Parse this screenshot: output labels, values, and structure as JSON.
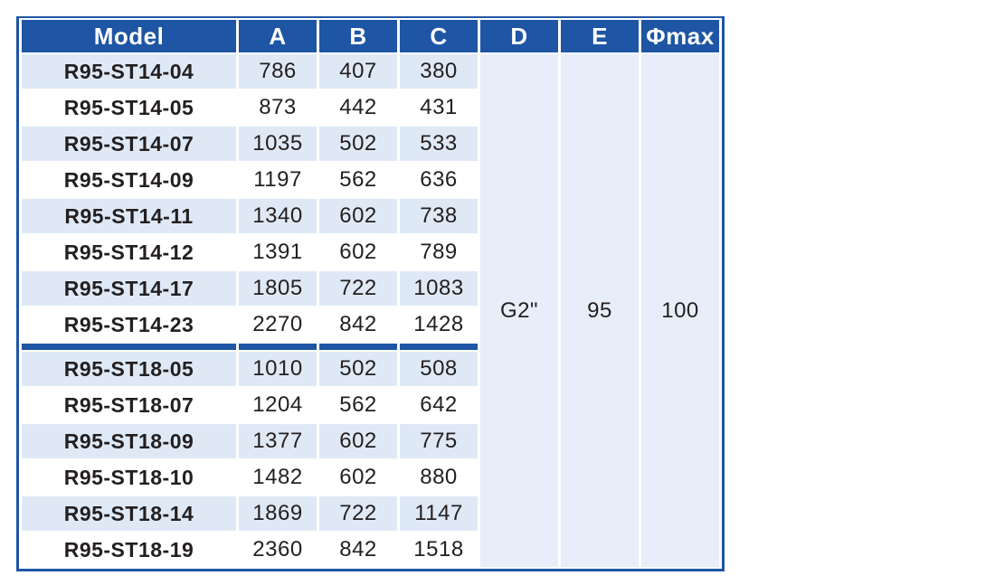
{
  "colors": {
    "header_bg": "#1e55a4",
    "border_blue": "#1e55a4",
    "row_alt": "#dfe9f6",
    "row_plain": "#ffffff",
    "merged_bg": "#e7eef9",
    "cell_text": "#231f20",
    "header_text": "#ffffff"
  },
  "chart_data": {
    "type": "table",
    "columns": [
      "Model",
      "A",
      "B",
      "C",
      "D",
      "E",
      "Φmax"
    ],
    "groups": [
      {
        "rows": [
          {
            "model": "R95-ST14-04",
            "A": 786,
            "B": 407,
            "C": 380
          },
          {
            "model": "R95-ST14-05",
            "A": 873,
            "B": 442,
            "C": 431
          },
          {
            "model": "R95-ST14-07",
            "A": 1035,
            "B": 502,
            "C": 533
          },
          {
            "model": "R95-ST14-09",
            "A": 1197,
            "B": 562,
            "C": 636
          },
          {
            "model": "R95-ST14-11",
            "A": 1340,
            "B": 602,
            "C": 738
          },
          {
            "model": "R95-ST14-12",
            "A": 1391,
            "B": 602,
            "C": 789
          },
          {
            "model": "R95-ST14-17",
            "A": 1805,
            "B": 722,
            "C": 1083
          },
          {
            "model": "R95-ST14-23",
            "A": 2270,
            "B": 842,
            "C": 1428
          }
        ]
      },
      {
        "rows": [
          {
            "model": "R95-ST18-05",
            "A": 1010,
            "B": 502,
            "C": 508
          },
          {
            "model": "R95-ST18-07",
            "A": 1204,
            "B": 562,
            "C": 642
          },
          {
            "model": "R95-ST18-09",
            "A": 1377,
            "B": 602,
            "C": 775
          },
          {
            "model": "R95-ST18-10",
            "A": 1482,
            "B": 602,
            "C": 880
          },
          {
            "model": "R95-ST18-14",
            "A": 1869,
            "B": 722,
            "C": 1147
          },
          {
            "model": "R95-ST18-19",
            "A": 2360,
            "B": 842,
            "C": 1518
          }
        ]
      }
    ],
    "shared_values": {
      "D": "G2\"",
      "E": 95,
      "Phimax": 100
    },
    "layout": {
      "grid": "white-gaps-between-cells",
      "group_separator": "thick-blue-bar-after-group-1",
      "shared_columns_merged_full_height": [
        "D",
        "E",
        "Φmax"
      ]
    }
  }
}
